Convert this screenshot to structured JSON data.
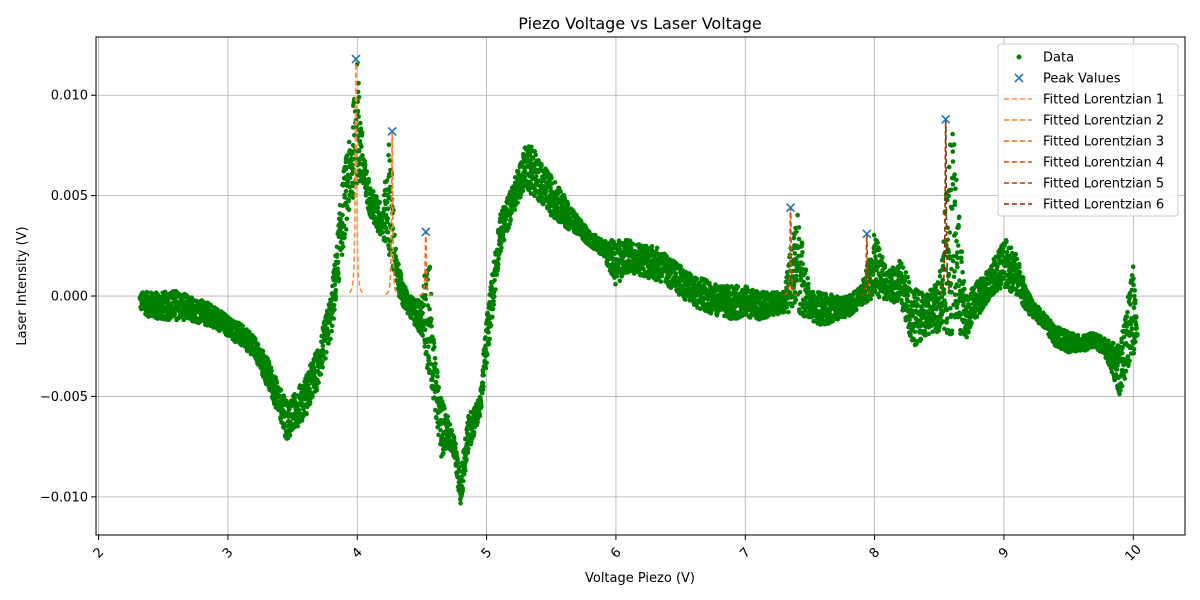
{
  "chart_data": {
    "type": "scatter",
    "title": "Piezo Voltage vs Laser Voltage",
    "xlabel": "Voltage Piezo (V)",
    "ylabel": "Laser Intensity (V)",
    "xlim": [
      1.98,
      10.4
    ],
    "ylim": [
      -0.0119,
      0.0129
    ],
    "x_ticks": [
      2,
      3,
      4,
      5,
      6,
      7,
      8,
      9,
      10
    ],
    "x_tick_labels": [
      "2",
      "3",
      "4",
      "5",
      "6",
      "7",
      "8",
      "9",
      "10"
    ],
    "y_ticks": [
      -0.01,
      -0.005,
      0.0,
      0.005,
      0.01
    ],
    "y_tick_labels": [
      "−0.010",
      "−0.005",
      "0.000",
      "0.005",
      "0.010"
    ],
    "grid": true,
    "legend_position": "top-right",
    "colors": {
      "data": "#008000",
      "peaks": "#1f77b4",
      "fits": [
        "#fd8d3c",
        "#f87f2c",
        "#ec6a1a",
        "#d94801",
        "#b63e02",
        "#8c2d04"
      ]
    },
    "series": [
      {
        "name": "Data",
        "marker": "dot",
        "envelope": {
          "x": [
            2.32,
            2.4,
            2.5,
            2.6,
            2.7,
            2.8,
            2.9,
            3.0,
            3.1,
            3.2,
            3.3,
            3.4,
            3.45,
            3.5,
            3.6,
            3.7,
            3.8,
            3.9,
            3.95,
            4.0,
            4.05,
            4.1,
            4.15,
            4.2,
            4.25,
            4.3,
            4.35,
            4.4,
            4.5,
            4.55,
            4.6,
            4.65,
            4.7,
            4.75,
            4.8,
            4.85,
            4.9,
            4.95,
            5.0,
            5.1,
            5.2,
            5.3,
            5.35,
            5.4,
            5.5,
            5.6,
            5.7,
            5.8,
            5.9,
            6.0,
            6.1,
            6.2,
            6.3,
            6.4,
            6.5,
            6.6,
            6.7,
            6.8,
            6.9,
            7.0,
            7.1,
            7.2,
            7.3,
            7.4,
            7.5,
            7.6,
            7.7,
            7.8,
            7.9,
            8.0,
            8.1,
            8.2,
            8.3,
            8.4,
            8.5,
            8.6,
            8.7,
            8.8,
            8.9,
            9.0,
            9.1,
            9.2,
            9.3,
            9.4,
            9.5,
            9.6,
            9.7,
            9.8,
            9.9,
            10.0,
            10.03
          ],
          "y_low": [
            -0.0007,
            -0.0011,
            -0.0012,
            -0.0012,
            -0.0012,
            -0.0014,
            -0.0016,
            -0.002,
            -0.0025,
            -0.003,
            -0.0045,
            -0.006,
            -0.0072,
            -0.0068,
            -0.006,
            -0.0045,
            -0.002,
            0.0028,
            0.0045,
            0.0055,
            0.005,
            0.004,
            0.0032,
            0.0028,
            0.002,
            0.0005,
            -0.0005,
            -0.001,
            -0.002,
            -0.004,
            -0.0055,
            -0.008,
            -0.0075,
            -0.008,
            -0.0105,
            -0.008,
            -0.007,
            -0.006,
            -0.0035,
            0.002,
            0.004,
            0.0055,
            0.005,
            0.0048,
            0.004,
            0.0035,
            0.003,
            0.0025,
            0.002,
            0.0005,
            0.0012,
            0.001,
            0.0008,
            0.0005,
            0.0,
            -0.0005,
            -0.0008,
            -0.001,
            -0.0012,
            -0.001,
            -0.0012,
            -0.001,
            -0.0008,
            -0.0008,
            -0.0012,
            -0.0015,
            -0.0012,
            -0.001,
            -0.0005,
            0.0,
            -0.0002,
            -0.0005,
            -0.0025,
            -0.002,
            -0.0018,
            -0.002,
            -0.0022,
            -0.001,
            0.0,
            0.0005,
            0.0,
            -0.001,
            -0.0015,
            -0.0025,
            -0.0028,
            -0.0028,
            -0.0025,
            -0.0032,
            -0.005,
            -0.003,
            -0.0022
          ],
          "y_high": [
            0.0002,
            0.0002,
            0.0002,
            0.0003,
            0.0,
            -0.0002,
            -0.0005,
            -0.001,
            -0.0014,
            -0.002,
            -0.003,
            -0.0045,
            -0.0052,
            -0.005,
            -0.004,
            -0.0025,
            0.0002,
            0.0065,
            0.008,
            0.0118,
            0.007,
            0.0055,
            0.005,
            0.0045,
            0.0082,
            0.002,
            0.0008,
            0.0,
            -0.0002,
            0.0032,
            -0.003,
            -0.005,
            -0.006,
            -0.007,
            -0.009,
            -0.006,
            -0.0055,
            -0.005,
            -0.001,
            0.004,
            0.0055,
            0.0075,
            0.0077,
            0.0068,
            0.006,
            0.005,
            0.004,
            0.0032,
            0.0028,
            0.0028,
            0.0028,
            0.0026,
            0.0025,
            0.002,
            0.0015,
            0.001,
            0.0008,
            0.0005,
            0.0005,
            0.0005,
            0.0002,
            0.0002,
            0.0002,
            0.0044,
            0.0002,
            0.0002,
            0.0,
            0.0,
            0.0005,
            0.0031,
            0.0012,
            0.0018,
            0.0005,
            0.0,
            0.001,
            0.0088,
            0.0,
            0.0008,
            0.0015,
            0.003,
            0.002,
            0.0,
            -0.0008,
            -0.0015,
            -0.0018,
            -0.002,
            -0.0018,
            -0.0022,
            -0.0025,
            0.0018,
            -0.0018
          ]
        }
      },
      {
        "name": "Peak Values",
        "marker": "x",
        "x": [
          3.99,
          4.27,
          4.53,
          7.35,
          7.94,
          8.55
        ],
        "y": [
          0.0118,
          0.0082,
          0.0032,
          0.0044,
          0.0031,
          0.0088
        ]
      },
      {
        "name": "Fitted Lorentzian 1",
        "line": "dashed",
        "center": 3.99,
        "amplitude": 0.0118,
        "width": 0.012,
        "baseline": 0.0
      },
      {
        "name": "Fitted Lorentzian 2",
        "line": "dashed",
        "center": 4.27,
        "amplitude": 0.0082,
        "width": 0.01,
        "baseline": 0.0
      },
      {
        "name": "Fitted Lorentzian 3",
        "line": "dashed",
        "center": 4.53,
        "amplitude": 0.0032,
        "width": 0.01,
        "baseline": 0.0
      },
      {
        "name": "Fitted Lorentzian 4",
        "line": "dashed",
        "center": 7.35,
        "amplitude": 0.0044,
        "width": 0.01,
        "baseline": 0.0
      },
      {
        "name": "Fitted Lorentzian 5",
        "line": "dashed",
        "center": 7.94,
        "amplitude": 0.0031,
        "width": 0.01,
        "baseline": 0.0
      },
      {
        "name": "Fitted Lorentzian 6",
        "line": "dashed",
        "center": 8.55,
        "amplitude": 0.0088,
        "width": 0.01,
        "baseline": 0.0
      }
    ]
  }
}
